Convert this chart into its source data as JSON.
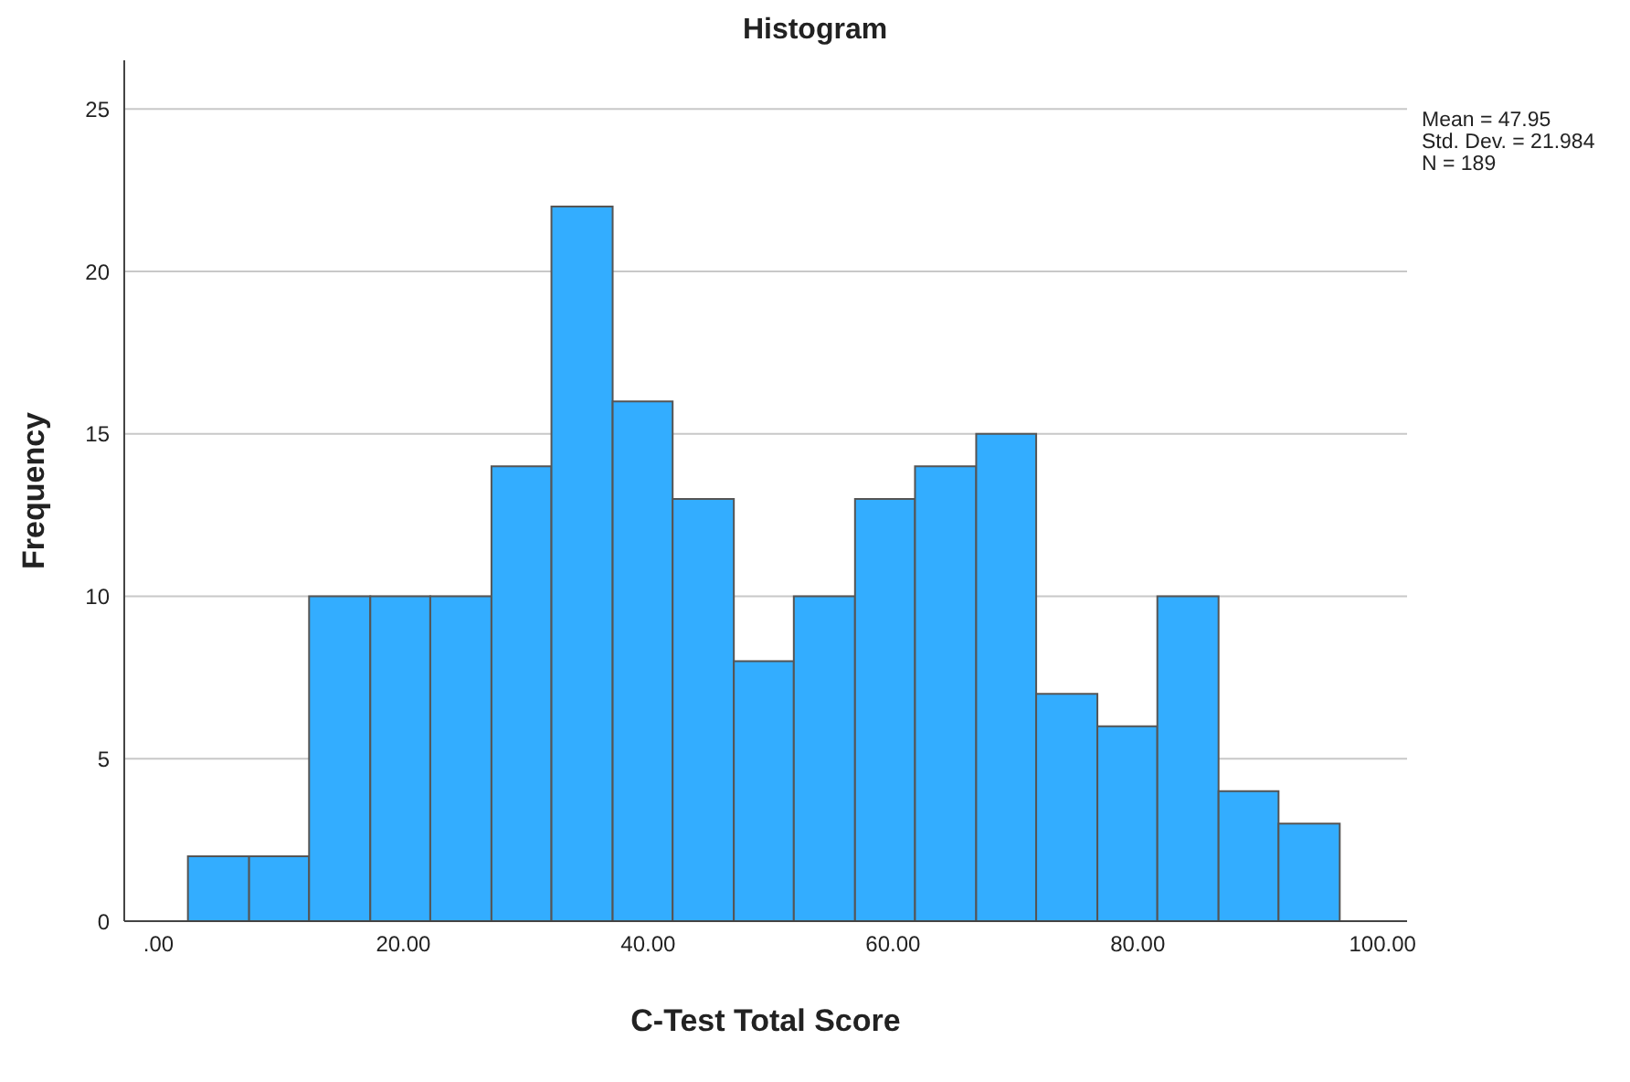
{
  "chart_data": {
    "type": "histogram",
    "title": "Histogram",
    "xlabel": "C-Test Total Score",
    "ylabel": "Frequency",
    "annotations": [
      "Mean = 47.95",
      "Std. Dev. = 21.984",
      "N = 189"
    ],
    "bins": [
      2.4,
      7.4,
      12.3,
      17.3,
      22.2,
      27.2,
      32.1,
      37.1,
      42.0,
      47.0,
      51.9,
      56.9,
      61.8,
      66.8,
      71.7,
      76.7,
      81.6,
      86.6,
      91.5,
      96.5
    ],
    "values": [
      2,
      2,
      10,
      10,
      10,
      14,
      22,
      16,
      13,
      8,
      10,
      13,
      14,
      15,
      7,
      6,
      10,
      4,
      3
    ],
    "color": "#33adff",
    "xlim": [
      -2.8,
      102
    ],
    "xticks": [
      {
        "value": 0,
        "label": ".00"
      },
      {
        "value": 20,
        "label": "20.00"
      },
      {
        "value": 40,
        "label": "40.00"
      },
      {
        "value": 60,
        "label": "60.00"
      },
      {
        "value": 80,
        "label": "80.00"
      },
      {
        "value": 100,
        "label": "100.00"
      }
    ],
    "ylim": [
      0,
      26.5
    ],
    "yticks": [
      0,
      5,
      10,
      15,
      20,
      25
    ],
    "grid": "y"
  }
}
